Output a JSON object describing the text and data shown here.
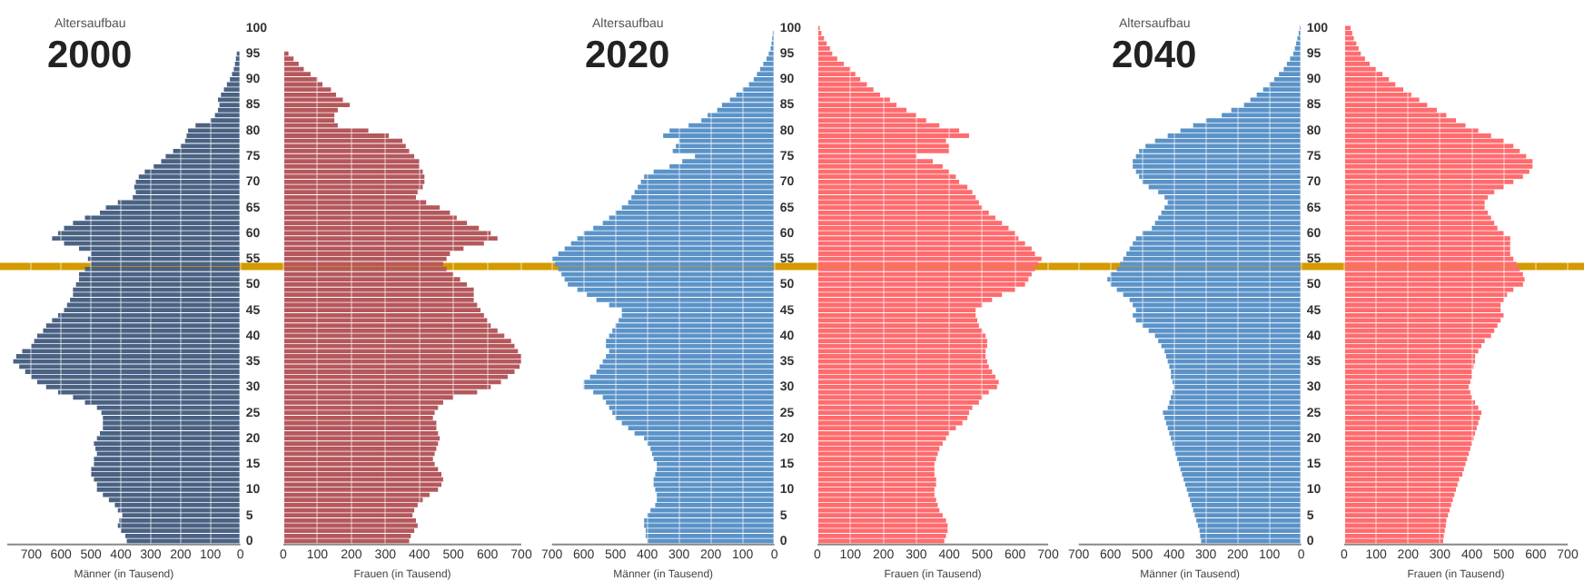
{
  "chart_data": [
    {
      "type": "bar",
      "orientation": "horizontal",
      "subtitle": "Altersaufbau",
      "title": "2000",
      "xlabel": "Männer (in Tausend)",
      "color": "#4a6283",
      "xlim": [
        780,
        0
      ],
      "xticks": [
        700,
        600,
        500,
        400,
        300,
        200,
        100,
        0
      ],
      "ylim": [
        -0.5,
        100.5
      ],
      "yticks": [
        0,
        5,
        10,
        15,
        20,
        25,
        30,
        35,
        40,
        45,
        50,
        55,
        60,
        65,
        70,
        75,
        80,
        85,
        90,
        95,
        100
      ],
      "grid": "x",
      "ref_lines": [
        {
          "axis": "y",
          "value": 53.5,
          "color": "#d49a00"
        }
      ],
      "x": [
        100,
        99,
        98,
        97,
        96,
        95,
        94,
        93,
        92,
        91,
        90,
        89,
        88,
        87,
        86,
        85,
        84,
        83,
        82,
        81,
        80,
        79,
        78,
        77,
        76,
        75,
        74,
        73,
        72,
        71,
        70,
        69,
        68,
        67,
        66,
        65,
        64,
        63,
        62,
        61,
        60,
        59,
        58,
        57,
        56,
        55,
        54,
        53,
        52,
        51,
        50,
        49,
        48,
        47,
        46,
        45,
        44,
        43,
        42,
        41,
        40,
        39,
        38,
        37,
        36,
        35,
        34,
        33,
        32,
        31,
        30,
        29,
        28,
        27,
        26,
        25,
        24,
        23,
        22,
        21,
        20,
        19,
        18,
        17,
        16,
        15,
        14,
        13,
        12,
        11,
        10,
        9,
        8,
        7,
        6,
        5,
        4,
        3,
        2,
        1,
        0
      ],
      "values": [
        0,
        0,
        0,
        0,
        0,
        12,
        15,
        18,
        22,
        28,
        35,
        45,
        55,
        65,
        75,
        70,
        75,
        85,
        100,
        150,
        175,
        180,
        185,
        200,
        225,
        250,
        265,
        290,
        320,
        340,
        350,
        355,
        350,
        360,
        410,
        450,
        470,
        520,
        560,
        590,
        610,
        630,
        590,
        540,
        500,
        510,
        500,
        520,
        540,
        540,
        550,
        560,
        560,
        570,
        580,
        590,
        610,
        630,
        650,
        660,
        680,
        690,
        700,
        730,
        750,
        760,
        740,
        720,
        700,
        680,
        650,
        610,
        560,
        520,
        480,
        465,
        460,
        460,
        460,
        470,
        480,
        490,
        485,
        480,
        490,
        490,
        500,
        500,
        490,
        480,
        480,
        460,
        440,
        420,
        410,
        395,
        405,
        410,
        400,
        385,
        380
      ]
    },
    {
      "type": "bar",
      "orientation": "horizontal",
      "xlabel": "Frauen (in Tausend)",
      "color": "#b5585c",
      "xlim": [
        0,
        700
      ],
      "xticks": [
        0,
        100,
        200,
        300,
        400,
        500,
        600,
        700
      ],
      "ylim": [
        -0.5,
        100.5
      ],
      "yticks": [
        0,
        5,
        10,
        15,
        20,
        25,
        30,
        35,
        40,
        45,
        50,
        55,
        60,
        65,
        70,
        75,
        80,
        85,
        90,
        95,
        100
      ],
      "tick_labels": "x",
      "grid": "x",
      "ref_lines": [
        {
          "axis": "y",
          "value": 53.5,
          "color": "#d49a00"
        }
      ],
      "x": [
        100,
        99,
        98,
        97,
        96,
        95,
        94,
        93,
        92,
        91,
        90,
        89,
        88,
        87,
        86,
        85,
        84,
        83,
        82,
        81,
        80,
        79,
        78,
        77,
        76,
        75,
        74,
        73,
        72,
        71,
        70,
        69,
        68,
        67,
        66,
        65,
        64,
        63,
        62,
        61,
        60,
        59,
        58,
        57,
        56,
        55,
        54,
        53,
        52,
        51,
        50,
        49,
        48,
        47,
        46,
        45,
        44,
        43,
        42,
        41,
        40,
        39,
        38,
        37,
        36,
        35,
        34,
        33,
        32,
        31,
        30,
        29,
        28,
        27,
        26,
        25,
        24,
        23,
        22,
        21,
        20,
        19,
        18,
        17,
        16,
        15,
        14,
        13,
        12,
        11,
        10,
        9,
        8,
        7,
        6,
        5,
        4,
        3,
        2,
        1,
        0
      ],
      "values": [
        0,
        0,
        0,
        0,
        0,
        15,
        30,
        45,
        60,
        80,
        100,
        115,
        140,
        155,
        175,
        195,
        160,
        150,
        150,
        160,
        250,
        310,
        350,
        360,
        370,
        385,
        400,
        400,
        410,
        415,
        415,
        410,
        395,
        390,
        420,
        460,
        490,
        510,
        540,
        575,
        610,
        630,
        590,
        530,
        490,
        480,
        470,
        480,
        500,
        520,
        540,
        560,
        560,
        560,
        570,
        580,
        590,
        600,
        610,
        630,
        650,
        670,
        680,
        690,
        700,
        700,
        695,
        680,
        660,
        640,
        610,
        570,
        500,
        470,
        455,
        445,
        440,
        450,
        450,
        455,
        460,
        455,
        450,
        445,
        440,
        445,
        455,
        465,
        470,
        465,
        455,
        430,
        410,
        395,
        385,
        380,
        390,
        395,
        385,
        375,
        370
      ]
    },
    {
      "type": "bar",
      "orientation": "horizontal",
      "subtitle": "Altersaufbau",
      "title": "2020",
      "xlabel": "Männer (in Tausend)",
      "color": "#5b93c8",
      "xlim": [
        700,
        0
      ],
      "xticks": [
        700,
        600,
        500,
        400,
        300,
        200,
        100,
        0
      ],
      "ylim": [
        -0.5,
        100.5
      ],
      "yticks": [
        0,
        5,
        10,
        15,
        20,
        25,
        30,
        35,
        40,
        45,
        50,
        55,
        60,
        65,
        70,
        75,
        80,
        85,
        90,
        95,
        100
      ],
      "grid": "x",
      "ref_lines": [
        {
          "axis": "y",
          "value": 53.5,
          "color": "#d49a00"
        }
      ],
      "x": [
        100,
        99,
        98,
        97,
        96,
        95,
        94,
        93,
        92,
        91,
        90,
        89,
        88,
        87,
        86,
        85,
        84,
        83,
        82,
        81,
        80,
        79,
        78,
        77,
        76,
        75,
        74,
        73,
        72,
        71,
        70,
        69,
        68,
        67,
        66,
        65,
        64,
        63,
        62,
        61,
        60,
        59,
        58,
        57,
        56,
        55,
        54,
        53,
        52,
        51,
        50,
        49,
        48,
        47,
        46,
        45,
        44,
        43,
        42,
        41,
        40,
        39,
        38,
        37,
        36,
        35,
        34,
        33,
        32,
        31,
        30,
        29,
        28,
        27,
        26,
        25,
        24,
        23,
        22,
        21,
        20,
        19,
        18,
        17,
        16,
        15,
        14,
        13,
        12,
        11,
        10,
        9,
        8,
        7,
        6,
        5,
        4,
        3,
        2,
        1,
        0
      ],
      "values": [
        0,
        5,
        7,
        9,
        12,
        18,
        25,
        35,
        45,
        55,
        65,
        80,
        100,
        120,
        140,
        165,
        180,
        210,
        230,
        270,
        330,
        350,
        300,
        310,
        320,
        250,
        290,
        330,
        380,
        410,
        420,
        430,
        440,
        450,
        460,
        480,
        500,
        520,
        540,
        570,
        600,
        620,
        640,
        660,
        680,
        700,
        690,
        680,
        670,
        660,
        650,
        620,
        590,
        560,
        520,
        480,
        480,
        490,
        500,
        510,
        520,
        530,
        530,
        520,
        530,
        540,
        550,
        560,
        580,
        600,
        600,
        570,
        540,
        530,
        520,
        510,
        500,
        480,
        460,
        440,
        410,
        400,
        390,
        385,
        380,
        370,
        370,
        375,
        380,
        380,
        375,
        370,
        370,
        375,
        390,
        400,
        410,
        410,
        405,
        405,
        400
      ]
    },
    {
      "type": "bar",
      "orientation": "horizontal",
      "xlabel": "Frauen (in Tausend)",
      "color": "#ff6b6e",
      "xlim": [
        0,
        700
      ],
      "xticks": [
        0,
        100,
        200,
        300,
        400,
        500,
        600,
        700
      ],
      "ylim": [
        -0.5,
        100.5
      ],
      "yticks": [
        0,
        5,
        10,
        15,
        20,
        25,
        30,
        35,
        40,
        45,
        50,
        55,
        60,
        65,
        70,
        75,
        80,
        85,
        90,
        95,
        100
      ],
      "tick_labels": "x",
      "grid": "x",
      "ref_lines": [
        {
          "axis": "y",
          "value": 53.5,
          "color": "#d49a00"
        }
      ],
      "x": [
        100,
        99,
        98,
        97,
        96,
        95,
        94,
        93,
        92,
        91,
        90,
        89,
        88,
        87,
        86,
        85,
        84,
        83,
        82,
        81,
        80,
        79,
        78,
        77,
        76,
        75,
        74,
        73,
        72,
        71,
        70,
        69,
        68,
        67,
        66,
        65,
        64,
        63,
        62,
        61,
        60,
        59,
        58,
        57,
        56,
        55,
        54,
        53,
        52,
        51,
        50,
        49,
        48,
        47,
        46,
        45,
        44,
        43,
        42,
        41,
        40,
        39,
        38,
        37,
        36,
        35,
        34,
        33,
        32,
        31,
        30,
        29,
        28,
        27,
        26,
        25,
        24,
        23,
        22,
        21,
        20,
        19,
        18,
        17,
        16,
        15,
        14,
        13,
        12,
        11,
        10,
        9,
        8,
        7,
        6,
        5,
        4,
        3,
        2,
        1,
        0
      ],
      "values": [
        7,
        12,
        20,
        28,
        38,
        45,
        60,
        80,
        100,
        115,
        130,
        150,
        170,
        190,
        220,
        240,
        270,
        300,
        330,
        370,
        430,
        460,
        390,
        400,
        400,
        300,
        350,
        380,
        400,
        420,
        430,
        455,
        470,
        480,
        490,
        500,
        520,
        540,
        560,
        580,
        600,
        610,
        630,
        650,
        660,
        680,
        670,
        660,
        650,
        640,
        630,
        600,
        560,
        530,
        500,
        480,
        480,
        485,
        490,
        500,
        510,
        515,
        515,
        510,
        510,
        515,
        520,
        530,
        540,
        550,
        545,
        520,
        500,
        490,
        470,
        460,
        455,
        440,
        420,
        400,
        390,
        380,
        370,
        365,
        360,
        355,
        355,
        355,
        360,
        360,
        355,
        355,
        360,
        365,
        370,
        380,
        390,
        395,
        395,
        390,
        385
      ]
    },
    {
      "type": "bar",
      "orientation": "horizontal",
      "subtitle": "Altersaufbau",
      "title": "2040",
      "xlabel": "Männer (in Tausend)",
      "color": "#5b93c8",
      "xlim": [
        700,
        0
      ],
      "xticks": [
        700,
        600,
        500,
        400,
        300,
        200,
        100,
        0
      ],
      "ylim": [
        -0.5,
        100.5
      ],
      "yticks": [
        0,
        5,
        10,
        15,
        20,
        25,
        30,
        35,
        40,
        45,
        50,
        55,
        60,
        65,
        70,
        75,
        80,
        85,
        90,
        95,
        100
      ],
      "grid": "x",
      "ref_lines": [
        {
          "axis": "y",
          "value": 53.5,
          "color": "#d49a00"
        }
      ],
      "x": [
        100,
        99,
        98,
        97,
        96,
        95,
        94,
        93,
        92,
        91,
        90,
        89,
        88,
        87,
        86,
        85,
        84,
        83,
        82,
        81,
        80,
        79,
        78,
        77,
        76,
        75,
        74,
        73,
        72,
        71,
        70,
        69,
        68,
        67,
        66,
        65,
        64,
        63,
        62,
        61,
        60,
        59,
        58,
        57,
        56,
        55,
        54,
        53,
        52,
        51,
        50,
        49,
        48,
        47,
        46,
        45,
        44,
        43,
        42,
        41,
        40,
        39,
        38,
        37,
        36,
        35,
        34,
        33,
        32,
        31,
        30,
        29,
        28,
        27,
        26,
        25,
        24,
        23,
        22,
        21,
        20,
        19,
        18,
        17,
        16,
        15,
        14,
        13,
        12,
        11,
        10,
        9,
        8,
        7,
        6,
        5,
        4,
        3,
        2,
        1,
        0
      ],
      "values": [
        5,
        8,
        12,
        16,
        20,
        25,
        35,
        45,
        55,
        70,
        85,
        100,
        120,
        140,
        160,
        180,
        220,
        250,
        300,
        340,
        380,
        420,
        460,
        490,
        510,
        520,
        530,
        530,
        520,
        510,
        500,
        480,
        450,
        430,
        420,
        430,
        440,
        450,
        460,
        470,
        500,
        520,
        530,
        540,
        550,
        560,
        570,
        580,
        600,
        610,
        600,
        580,
        560,
        540,
        530,
        520,
        530,
        520,
        500,
        480,
        460,
        450,
        440,
        430,
        425,
        420,
        415,
        410,
        410,
        405,
        400,
        405,
        410,
        415,
        420,
        435,
        430,
        425,
        420,
        415,
        410,
        405,
        400,
        395,
        390,
        385,
        380,
        375,
        370,
        365,
        360,
        355,
        350,
        345,
        340,
        335,
        330,
        325,
        320,
        318,
        315
      ]
    },
    {
      "type": "bar",
      "orientation": "horizontal",
      "xlabel": "Frauen (in Tausend)",
      "color": "#ff6b6e",
      "xlim": [
        0,
        700
      ],
      "xticks": [
        0,
        100,
        200,
        300,
        400,
        500,
        600,
        700
      ],
      "ylim": [
        -0.5,
        100.5
      ],
      "yticks": [
        0,
        5,
        10,
        15,
        20,
        25,
        30,
        35,
        40,
        45,
        50,
        55,
        60,
        65,
        70,
        75,
        80,
        85,
        90,
        95,
        100
      ],
      "tick_labels": "x",
      "grid": "x",
      "ref_lines": [
        {
          "axis": "y",
          "value": 53.5,
          "color": "#d49a00"
        }
      ],
      "x": [
        100,
        99,
        98,
        97,
        96,
        95,
        94,
        93,
        92,
        91,
        90,
        89,
        88,
        87,
        86,
        85,
        84,
        83,
        82,
        81,
        80,
        79,
        78,
        77,
        76,
        75,
        74,
        73,
        72,
        71,
        70,
        69,
        68,
        67,
        66,
        65,
        64,
        63,
        62,
        61,
        60,
        59,
        58,
        57,
        56,
        55,
        54,
        53,
        52,
        51,
        50,
        49,
        48,
        47,
        46,
        45,
        44,
        43,
        42,
        41,
        40,
        39,
        38,
        37,
        36,
        35,
        34,
        33,
        32,
        31,
        30,
        29,
        28,
        27,
        26,
        25,
        24,
        23,
        22,
        21,
        20,
        19,
        18,
        17,
        16,
        15,
        14,
        13,
        12,
        11,
        10,
        9,
        8,
        7,
        6,
        5,
        4,
        3,
        2,
        1,
        0
      ],
      "values": [
        20,
        25,
        30,
        38,
        45,
        52,
        65,
        80,
        100,
        120,
        140,
        160,
        185,
        210,
        235,
        260,
        290,
        320,
        350,
        380,
        420,
        460,
        500,
        530,
        550,
        570,
        590,
        590,
        580,
        560,
        530,
        500,
        470,
        450,
        440,
        440,
        450,
        460,
        470,
        480,
        500,
        520,
        520,
        520,
        520,
        530,
        540,
        550,
        560,
        565,
        560,
        530,
        510,
        500,
        490,
        490,
        500,
        490,
        480,
        470,
        460,
        440,
        430,
        420,
        410,
        410,
        405,
        400,
        400,
        395,
        390,
        395,
        400,
        410,
        420,
        430,
        425,
        420,
        415,
        410,
        405,
        400,
        395,
        390,
        385,
        380,
        375,
        370,
        360,
        355,
        350,
        345,
        340,
        335,
        330,
        325,
        320,
        318,
        315,
        312,
        310
      ]
    }
  ]
}
